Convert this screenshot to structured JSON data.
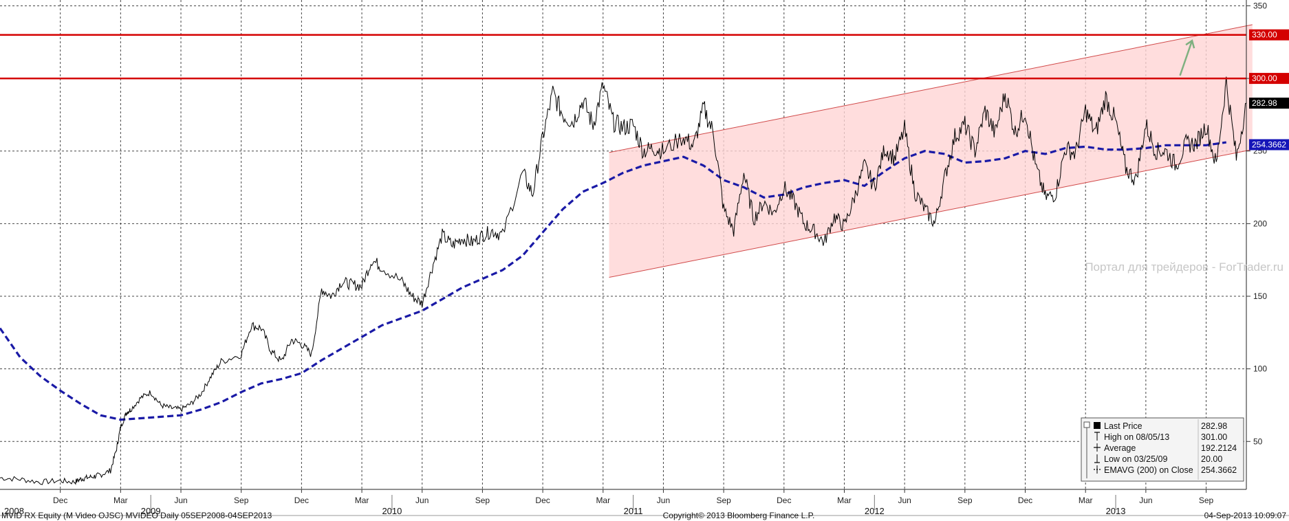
{
  "chart_data": {
    "type": "line",
    "ticker": "MVID RX Equity (M Video OJSC) MVIDEO  Daily 05SEP2008-04SEP2013",
    "copyright": "Copyright© 2013 Bloomberg Finance L.P.",
    "timestamp": "04-Sep-2013 10:09:07",
    "watermark": "Портал для трейдеров - ForTrader.ru",
    "ylim": [
      17,
      354
    ],
    "yticks": [
      50,
      100,
      150,
      200,
      250,
      300,
      350
    ],
    "months": [
      {
        "label": "Dec",
        "t": 3
      },
      {
        "label": "Mar",
        "t": 6
      },
      {
        "label": "Jun",
        "t": 9
      },
      {
        "label": "Sep",
        "t": 12
      },
      {
        "label": "Dec",
        "t": 15
      },
      {
        "label": "Mar",
        "t": 18
      },
      {
        "label": "Jun",
        "t": 21
      },
      {
        "label": "Sep",
        "t": 24
      },
      {
        "label": "Dec",
        "t": 27
      },
      {
        "label": "Mar",
        "t": 30
      },
      {
        "label": "Jun",
        "t": 33
      },
      {
        "label": "Sep",
        "t": 36
      },
      {
        "label": "Dec",
        "t": 39
      },
      {
        "label": "Mar",
        "t": 42
      },
      {
        "label": "Jun",
        "t": 45
      },
      {
        "label": "Sep",
        "t": 48
      },
      {
        "label": "Dec",
        "t": 51
      },
      {
        "label": "Mar",
        "t": 54
      },
      {
        "label": "Jun",
        "t": 57
      },
      {
        "label": "Sep",
        "t": 60
      }
    ],
    "years": [
      {
        "label": "2008",
        "t": 0
      },
      {
        "label": "2009",
        "t": 7.5
      },
      {
        "label": "2010",
        "t": 19.5
      },
      {
        "label": "2011",
        "t": 31.5
      },
      {
        "label": "2012",
        "t": 43.5
      },
      {
        "label": "2013",
        "t": 55.5
      }
    ],
    "price": {
      "name": "Last Price",
      "t": [
        0,
        1,
        2,
        3,
        3.7,
        4,
        4.3,
        4.7,
        5,
        5.5,
        5.8,
        6,
        6.3,
        6.5,
        7,
        7.5,
        8,
        8.5,
        9,
        9.5,
        10,
        10.5,
        11,
        12,
        12.5,
        13,
        13.5,
        14,
        14.5,
        15,
        15.5,
        16,
        16.5,
        17,
        17.5,
        18,
        18.5,
        19,
        20,
        20.5,
        21,
        21.5,
        22,
        22.5,
        23,
        23.5,
        24,
        24.5,
        25,
        26,
        26.5,
        27,
        27.5,
        28,
        28.5,
        29,
        29.5,
        30,
        30.5,
        31,
        31.5,
        32,
        32.5,
        33,
        34,
        34.5,
        35,
        35.5,
        36,
        36.5,
        37,
        37.5,
        38,
        38.5,
        39,
        39.5,
        40,
        40.5,
        41,
        41.5,
        42,
        42.5,
        43,
        43.5,
        44,
        44.5,
        45,
        45.5,
        46,
        46.5,
        47,
        47.5,
        48,
        48.5,
        49,
        49.5,
        50,
        50.5,
        51,
        51.5,
        52,
        52.5,
        53,
        53.5,
        54,
        54.5,
        55,
        55.5,
        56,
        56.5,
        57,
        57.5,
        58,
        58.5,
        59,
        59.5,
        60,
        60.5,
        61,
        61.5,
        62
      ],
      "values": [
        25,
        24,
        22,
        23,
        22,
        24,
        25,
        26,
        27,
        30,
        45,
        60,
        70,
        72,
        80,
        84,
        75,
        73,
        72,
        76,
        83,
        95,
        105,
        110,
        130,
        128,
        112,
        105,
        120,
        117,
        110,
        155,
        150,
        160,
        158,
        157,
        175,
        170,
        160,
        150,
        145,
        170,
        192,
        185,
        190,
        187,
        192,
        195,
        192,
        235,
        220,
        260,
        290,
        275,
        270,
        285,
        268,
        295,
        270,
        266,
        268,
        250,
        252,
        250,
        260,
        253,
        280,
        262,
        210,
        195,
        235,
        203,
        215,
        207,
        225,
        215,
        200,
        195,
        187,
        205,
        198,
        218,
        240,
        225,
        252,
        245,
        265,
        222,
        210,
        200,
        232,
        260,
        268,
        250,
        278,
        262,
        290,
        263,
        278,
        240,
        218,
        220,
        252,
        248,
        278,
        262,
        287,
        270,
        238,
        230,
        268,
        250,
        250,
        240,
        255,
        255,
        268,
        240,
        298,
        245,
        283
      ]
    },
    "ema": {
      "name": "EMAVG (200) on Close",
      "t": [
        0,
        1,
        2,
        3,
        4,
        5,
        6,
        7,
        8,
        9,
        10,
        11,
        12,
        13,
        14,
        15,
        16,
        17,
        18,
        19,
        20,
        21,
        22,
        23,
        24,
        25,
        26,
        27,
        28,
        29,
        30,
        31,
        32,
        33,
        34,
        35,
        36,
        37,
        38,
        39,
        40,
        41,
        42,
        43,
        44,
        45,
        46,
        47,
        48,
        49,
        50,
        51,
        52,
        53,
        54,
        55,
        56,
        57,
        58,
        59,
        60,
        61
      ],
      "values": [
        128,
        108,
        95,
        85,
        76,
        68,
        65,
        66,
        67,
        68,
        72,
        77,
        84,
        90,
        93,
        97,
        106,
        114,
        122,
        130,
        135,
        140,
        148,
        156,
        162,
        168,
        178,
        194,
        210,
        222,
        228,
        235,
        240,
        243,
        246,
        240,
        230,
        225,
        218,
        220,
        225,
        228,
        230,
        226,
        236,
        245,
        250,
        248,
        242,
        243,
        245,
        250,
        248,
        252,
        253,
        251,
        251,
        252,
        254,
        254,
        254,
        256
      ]
    },
    "channel": {
      "t0": 30.3,
      "t1": 62.3,
      "upper": [
        249,
        337
      ],
      "lower": [
        163,
        251
      ]
    },
    "levels": [
      {
        "value": 330,
        "label": "330.00",
        "color": "#d40000"
      },
      {
        "value": 300,
        "label": "300.00",
        "color": "#d40000"
      }
    ],
    "last_tag": {
      "value": 282.98,
      "label": "282.98",
      "color": "#000000"
    },
    "ema_tag": {
      "value": 254.3662,
      "label": "254.3662",
      "color": "#1515b8"
    },
    "arrow": {
      "from": [
        58.7,
        302
      ],
      "to": [
        59.3,
        326
      ],
      "color": "#7fb080"
    },
    "legend": [
      {
        "icon": "square",
        "name": "Last Price",
        "value": "282.98"
      },
      {
        "icon": "high",
        "name": "High on 08/05/13",
        "value": "301.00"
      },
      {
        "icon": "avg",
        "name": "Average",
        "value": "192.2124"
      },
      {
        "icon": "low",
        "name": "Low on 03/25/09",
        "value": "20.00"
      },
      {
        "icon": "ema",
        "name": "EMAVG (200) on Close",
        "value": "254.3662"
      }
    ],
    "colors": {
      "price": "#000000",
      "ema": "#1a1aa6",
      "channel_fill": "#ffd4d4",
      "channel_edge": "#d04848",
      "grid": "#444444"
    }
  }
}
